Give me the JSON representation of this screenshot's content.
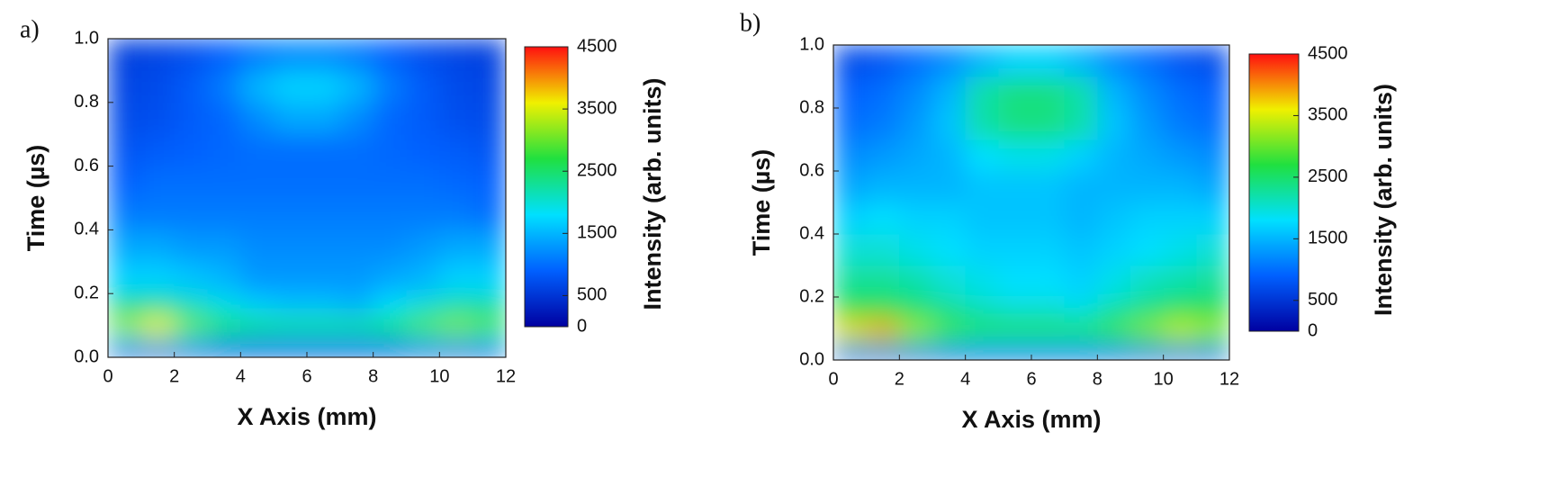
{
  "chart_data": [
    {
      "type": "heatmap",
      "label": "a)",
      "xlabel": "X Axis (mm)",
      "ylabel": "Time (µs)",
      "zlabel": "Intensity (arb. units)",
      "xlim": [
        0,
        12
      ],
      "xticks": [
        0,
        2,
        4,
        6,
        8,
        10,
        12
      ],
      "ylim": [
        0,
        1
      ],
      "yticks": [
        {
          "value": 0,
          "label": "0.0"
        },
        0.2,
        0.4,
        0.6,
        0.8,
        {
          "value": 1,
          "label": "1.0"
        }
      ],
      "zlim": [
        0,
        4500
      ],
      "zticks": [
        0,
        500,
        1500,
        2500,
        3500,
        4500
      ],
      "colormap": [
        "#0000a0",
        "#0060ff",
        "#00e0ff",
        "#20e040",
        "#f0f000",
        "#ff1010"
      ],
      "xbins": [
        0,
        1,
        2,
        3,
        4,
        5,
        6,
        7,
        8,
        9,
        10,
        11,
        12
      ],
      "ybins": [
        0,
        0.04,
        0.07,
        0.13,
        0.2,
        0.3,
        0.4,
        0.5,
        0.6,
        0.7,
        0.8,
        0.9,
        1
      ],
      "z": [
        [
          500,
          450,
          450,
          450,
          450,
          450,
          450,
          450,
          450,
          450,
          450,
          500
        ],
        [
          1800,
          2000,
          1800,
          1600,
          1500,
          1500,
          1500,
          1500,
          1600,
          1800,
          1900,
          1800
        ],
        [
          3200,
          3600,
          3000,
          2600,
          2400,
          2300,
          2300,
          2300,
          2500,
          2900,
          3100,
          2900
        ],
        [
          2300,
          2300,
          2100,
          1900,
          1700,
          1600,
          1600,
          1500,
          1800,
          2000,
          2200,
          2200
        ],
        [
          1700,
          1700,
          1600,
          1500,
          1300,
          1300,
          1300,
          1300,
          1400,
          1500,
          1700,
          1700
        ],
        [
          1400,
          1400,
          1300,
          1300,
          1200,
          1200,
          1200,
          1200,
          1200,
          1300,
          1400,
          1400
        ],
        [
          1100,
          1100,
          1100,
          1100,
          1100,
          1100,
          1100,
          1100,
          1100,
          1100,
          1100,
          1000
        ],
        [
          900,
          1000,
          1000,
          1000,
          1000,
          1000,
          1000,
          1000,
          1000,
          1000,
          950,
          900
        ],
        [
          800,
          850,
          900,
          950,
          1000,
          1000,
          1000,
          1000,
          950,
          900,
          850,
          800
        ],
        [
          700,
          750,
          850,
          950,
          1200,
          1400,
          1400,
          1200,
          950,
          850,
          750,
          700
        ],
        [
          650,
          700,
          850,
          1100,
          1500,
          1700,
          1700,
          1500,
          1100,
          850,
          700,
          650
        ],
        [
          600,
          650,
          750,
          900,
          1100,
          1200,
          1200,
          1100,
          900,
          750,
          650,
          600
        ]
      ]
    },
    {
      "type": "heatmap",
      "label": "b)",
      "xlabel": "X Axis (mm)",
      "ylabel": "Time (µs)",
      "zlabel": "Intensity (arb. units)",
      "xlim": [
        0,
        12
      ],
      "xticks": [
        0,
        2,
        4,
        6,
        8,
        10,
        12
      ],
      "ylim": [
        0,
        1
      ],
      "yticks": [
        {
          "value": 0,
          "label": "0.0"
        },
        0.2,
        0.4,
        0.6,
        0.8,
        {
          "value": 1,
          "label": "1.0"
        }
      ],
      "zlim": [
        0,
        4500
      ],
      "zticks": [
        0,
        500,
        1500,
        2500,
        3500,
        4500
      ],
      "colormap": [
        "#0000a0",
        "#0060ff",
        "#00e0ff",
        "#20e040",
        "#f0f000",
        "#ff1010"
      ],
      "xbins": [
        0,
        1,
        2,
        3,
        4,
        5,
        6,
        7,
        8,
        9,
        10,
        11,
        12
      ],
      "ybins": [
        0,
        0.04,
        0.07,
        0.13,
        0.2,
        0.3,
        0.4,
        0.5,
        0.6,
        0.7,
        0.8,
        0.9,
        1
      ],
      "z": [
        [
          600,
          550,
          550,
          550,
          550,
          550,
          550,
          550,
          550,
          550,
          550,
          600
        ],
        [
          2200,
          2400,
          2200,
          2000,
          1900,
          1900,
          1900,
          1900,
          2000,
          2200,
          2300,
          2200
        ],
        [
          3700,
          3900,
          3200,
          2800,
          2600,
          2600,
          2600,
          2600,
          2800,
          3100,
          3400,
          3200
        ],
        [
          2700,
          2700,
          2500,
          2300,
          2100,
          2000,
          2000,
          1900,
          2200,
          2400,
          2600,
          2600
        ],
        [
          2300,
          2300,
          2200,
          2000,
          1900,
          1800,
          1800,
          1700,
          1900,
          2100,
          2200,
          2300
        ],
        [
          2000,
          2000,
          1900,
          1800,
          1700,
          1700,
          1700,
          1600,
          1700,
          1800,
          1900,
          2000
        ],
        [
          1700,
          1800,
          1700,
          1700,
          1600,
          1600,
          1600,
          1500,
          1600,
          1700,
          1700,
          1700
        ],
        [
          1400,
          1500,
          1500,
          1500,
          1600,
          1600,
          1600,
          1500,
          1500,
          1500,
          1500,
          1400
        ],
        [
          1200,
          1300,
          1400,
          1500,
          1800,
          1900,
          1900,
          1700,
          1500,
          1400,
          1300,
          1200
        ],
        [
          1000,
          1100,
          1300,
          1600,
          2200,
          2400,
          2400,
          2200,
          1600,
          1300,
          1100,
          1000
        ],
        [
          900,
          1000,
          1200,
          1500,
          2200,
          2400,
          2400,
          2200,
          1500,
          1200,
          1000,
          900
        ],
        [
          700,
          800,
          1000,
          1200,
          1500,
          1700,
          1700,
          1500,
          1200,
          1000,
          800,
          700
        ]
      ]
    }
  ]
}
